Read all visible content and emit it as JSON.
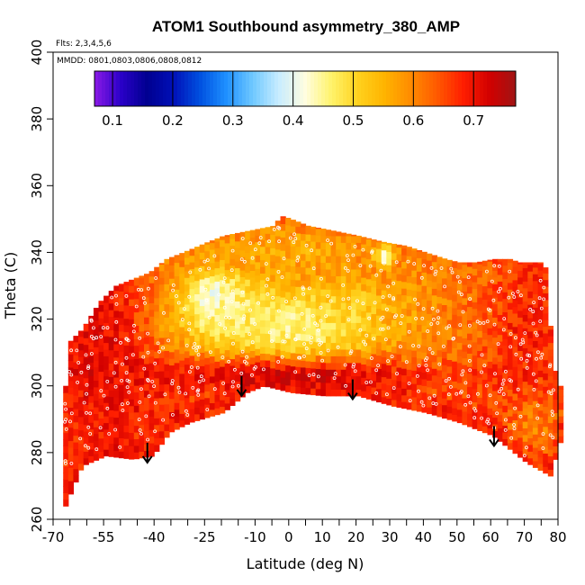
{
  "chart_data": {
    "type": "heatmap",
    "title": "ATOM1 Southbound asymmetry_380_AMP",
    "annotations": {
      "flights": "Flts: 2,3,4,5,6",
      "dates": "MMDD: 0801,0803,0806,0808,0812"
    },
    "xlabel": "Latitude (deg N)",
    "ylabel": "Theta (C)",
    "xlim": [
      -70,
      80
    ],
    "ylim": [
      260,
      400
    ],
    "x_ticks": [
      -70,
      -55,
      -40,
      -25,
      -10,
      0,
      10,
      20,
      30,
      40,
      50,
      60,
      70,
      80
    ],
    "x_tick_labels": [
      "-70",
      "-55",
      "-40",
      "-25",
      "-10",
      "0",
      "10",
      "20",
      "30",
      "40",
      "50",
      "60",
      "70",
      "80"
    ],
    "x_minor_ticks": [
      -65,
      -60,
      -50,
      -45,
      -35,
      -30,
      -20,
      -15,
      -5,
      5,
      15,
      25,
      35,
      45,
      55,
      65,
      75
    ],
    "y_ticks": [
      260,
      280,
      300,
      320,
      340,
      360,
      380,
      400
    ],
    "y_tick_labels": [
      "260",
      "280",
      "300",
      "320",
      "340",
      "360",
      "380",
      "400"
    ],
    "colorbar": {
      "range": [
        0.07,
        0.77
      ],
      "ticks": [
        0.1,
        0.2,
        0.3,
        0.4,
        0.5,
        0.6,
        0.7
      ],
      "tick_labels": [
        "0.1",
        "0.2",
        "0.3",
        "0.4",
        "0.5",
        "0.6",
        "0.7"
      ],
      "colors": [
        "#8b1ae6",
        "#2a00c8",
        "#000090",
        "#0010b8",
        "#0050e0",
        "#1e90ff",
        "#6ec8ff",
        "#c8ecff",
        "#fffde0",
        "#fff36b",
        "#ffd21e",
        "#ffb400",
        "#ff8c00",
        "#ff5a00",
        "#ff1e00",
        "#d20000",
        "#a01414"
      ]
    },
    "top_boundary": [
      [
        -67,
        300
      ],
      [
        -67,
        312
      ],
      [
        -62,
        317
      ],
      [
        -57,
        325
      ],
      [
        -52,
        330
      ],
      [
        -47,
        332
      ],
      [
        -42,
        334
      ],
      [
        -37,
        338
      ],
      [
        -32,
        340
      ],
      [
        -25,
        343
      ],
      [
        -20,
        345
      ],
      [
        -15,
        346
      ],
      [
        -10,
        347
      ],
      [
        -5,
        348
      ],
      [
        -3,
        351
      ],
      [
        0,
        350
      ],
      [
        5,
        348
      ],
      [
        10,
        347
      ],
      [
        15,
        346
      ],
      [
        20,
        345
      ],
      [
        28,
        343
      ],
      [
        34,
        342
      ],
      [
        40,
        340
      ],
      [
        46,
        338
      ],
      [
        50,
        337
      ],
      [
        55,
        337
      ],
      [
        60,
        338
      ],
      [
        65,
        338
      ],
      [
        68,
        337
      ],
      [
        74,
        337
      ],
      [
        76,
        335
      ],
      [
        77,
        318
      ],
      [
        79,
        300
      ]
    ],
    "bottom_boundary": [
      [
        -67,
        264
      ],
      [
        -62,
        276
      ],
      [
        -55,
        279
      ],
      [
        -47,
        278
      ],
      [
        -41,
        279
      ],
      [
        -36,
        286
      ],
      [
        -30,
        289
      ],
      [
        -20,
        292
      ],
      [
        -13,
        298
      ],
      [
        -8,
        300
      ],
      [
        0,
        298
      ],
      [
        10,
        297
      ],
      [
        20,
        297
      ],
      [
        30,
        294
      ],
      [
        40,
        292
      ],
      [
        50,
        289
      ],
      [
        60,
        285
      ],
      [
        70,
        277
      ],
      [
        77,
        273
      ],
      [
        80,
        283
      ]
    ],
    "minima_arrows": [
      {
        "lat": -42,
        "theta": 277
      },
      {
        "lat": -14,
        "theta": 297
      },
      {
        "lat": 19,
        "theta": 296
      },
      {
        "lat": 61,
        "theta": 282
      }
    ],
    "value_field": {
      "base": 0.66,
      "blobs": [
        {
          "lat": -55,
          "theta": 310,
          "val": 0.72,
          "sx": 10,
          "sy": 18
        },
        {
          "lat": -45,
          "theta": 300,
          "val": 0.7,
          "sx": 12,
          "sy": 10
        },
        {
          "lat": -30,
          "theta": 320,
          "val": 0.57,
          "sx": 10,
          "sy": 14
        },
        {
          "lat": -22,
          "theta": 326,
          "val": 0.3,
          "sx": 5,
          "sy": 5
        },
        {
          "lat": -18,
          "theta": 322,
          "val": 0.45,
          "sx": 9,
          "sy": 8
        },
        {
          "lat": -5,
          "theta": 318,
          "val": 0.47,
          "sx": 12,
          "sy": 9
        },
        {
          "lat": 8,
          "theta": 316,
          "val": 0.42,
          "sx": 10,
          "sy": 6
        },
        {
          "lat": 18,
          "theta": 320,
          "val": 0.5,
          "sx": 12,
          "sy": 10
        },
        {
          "lat": 0,
          "theta": 340,
          "val": 0.56,
          "sx": 22,
          "sy": 6
        },
        {
          "lat": 28,
          "theta": 338,
          "val": 0.38,
          "sx": 2,
          "sy": 2
        },
        {
          "lat": 40,
          "theta": 318,
          "val": 0.55,
          "sx": 10,
          "sy": 12
        },
        {
          "lat": 55,
          "theta": 320,
          "val": 0.62,
          "sx": 12,
          "sy": 16
        },
        {
          "lat": 70,
          "theta": 315,
          "val": 0.68,
          "sx": 8,
          "sy": 20
        },
        {
          "lat": 72,
          "theta": 285,
          "val": 0.6,
          "sx": 6,
          "sy": 8
        },
        {
          "lat": 0,
          "theta": 302,
          "val": 0.72,
          "sx": 35,
          "sy": 4
        }
      ]
    }
  }
}
